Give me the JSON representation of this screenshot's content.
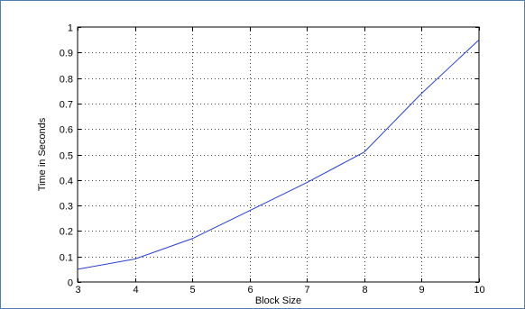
{
  "chart_data": {
    "type": "line",
    "title": "",
    "xlabel": "Block Size",
    "ylabel": "Time in Seconds",
    "xlim": [
      3,
      10
    ],
    "ylim": [
      0,
      1
    ],
    "xticks": [
      3,
      4,
      5,
      6,
      7,
      8,
      9,
      10
    ],
    "yticks": [
      0,
      0.1,
      0.2,
      0.3,
      0.4,
      0.5,
      0.6,
      0.7,
      0.8,
      0.9,
      1
    ],
    "xtick_labels": [
      "3",
      "4",
      "5",
      "6",
      "7",
      "8",
      "9",
      "10"
    ],
    "ytick_labels": [
      "0",
      "0.1",
      "0.2",
      "0.3",
      "0.4",
      "0.5",
      "0.6",
      "0.7",
      "0.8",
      "0.9",
      "1"
    ],
    "grid": true,
    "series": [
      {
        "x": [
          3,
          4,
          5,
          6,
          7,
          8,
          9,
          10
        ],
        "y": [
          0.05,
          0.09,
          0.17,
          0.28,
          0.39,
          0.51,
          0.74,
          0.95
        ],
        "color": "#2a3fcf"
      }
    ]
  }
}
